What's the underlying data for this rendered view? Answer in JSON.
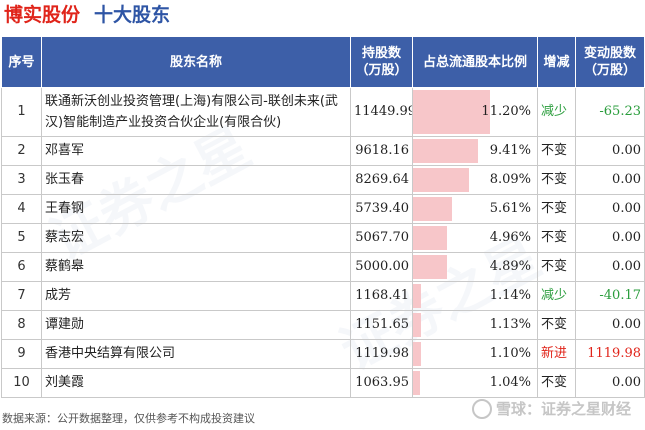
{
  "header": {
    "company": "博实股份",
    "subtitle": "十大股东",
    "company_color": "#e0241a",
    "subtitle_color": "#2e55a5"
  },
  "table": {
    "header_color": "#3d5fa8",
    "bar_color": "#f7c6c9",
    "columns": {
      "index": "序号",
      "name": "股东名称",
      "shares": "持股数\n（万股）",
      "ratio": "占总流通股本比例",
      "trend": "增减",
      "change": "变动股数\n（万股）"
    },
    "rows": [
      {
        "index": "1",
        "name": "联通新沃创业投资管理(上海)有限公司-联创未来(武汉)智能制造产业投资合伙企业(有限合伙)",
        "shares": "11449.99",
        "ratio": "11.20%",
        "ratio_value": 11.2,
        "trend": "减少",
        "trend_type": "down",
        "change": "-65.23"
      },
      {
        "index": "2",
        "name": "邓喜军",
        "shares": "9618.16",
        "ratio": "9.41%",
        "ratio_value": 9.41,
        "trend": "不变",
        "trend_type": "neutral",
        "change": "0.00"
      },
      {
        "index": "3",
        "name": "张玉春",
        "shares": "8269.64",
        "ratio": "8.09%",
        "ratio_value": 8.09,
        "trend": "不变",
        "trend_type": "neutral",
        "change": "0.00"
      },
      {
        "index": "4",
        "name": "王春钢",
        "shares": "5739.40",
        "ratio": "5.61%",
        "ratio_value": 5.61,
        "trend": "不变",
        "trend_type": "neutral",
        "change": "0.00"
      },
      {
        "index": "5",
        "name": "蔡志宏",
        "shares": "5067.70",
        "ratio": "4.96%",
        "ratio_value": 4.96,
        "trend": "不变",
        "trend_type": "neutral",
        "change": "0.00"
      },
      {
        "index": "6",
        "name": "蔡鹤皋",
        "shares": "5000.00",
        "ratio": "4.89%",
        "ratio_value": 4.89,
        "trend": "不变",
        "trend_type": "neutral",
        "change": "0.00"
      },
      {
        "index": "7",
        "name": "成芳",
        "shares": "1168.41",
        "ratio": "1.14%",
        "ratio_value": 1.14,
        "trend": "减少",
        "trend_type": "down",
        "change": "-40.17"
      },
      {
        "index": "8",
        "name": "谭建勋",
        "shares": "1151.65",
        "ratio": "1.13%",
        "ratio_value": 1.13,
        "trend": "不变",
        "trend_type": "neutral",
        "change": "0.00"
      },
      {
        "index": "9",
        "name": "香港中央结算有限公司",
        "shares": "1119.98",
        "ratio": "1.10%",
        "ratio_value": 1.1,
        "trend": "新进",
        "trend_type": "up",
        "change": "1119.98"
      },
      {
        "index": "10",
        "name": "刘美霞",
        "shares": "1063.95",
        "ratio": "1.04%",
        "ratio_value": 1.04,
        "trend": "不变",
        "trend_type": "neutral",
        "change": "0.00"
      }
    ]
  },
  "footer": {
    "source": "数据来源：公开数据整理，仅供参考不构成投资建议",
    "brand": "雪球：证券之星财经"
  }
}
